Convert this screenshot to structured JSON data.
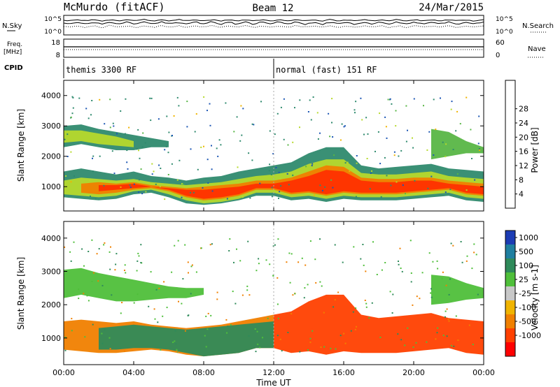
{
  "header": {
    "station": "McMurdo (fitACF)",
    "beam": "Beam 12",
    "date": "24/Mar/2015"
  },
  "top_panels": {
    "nsky_label": "N.Sky",
    "nsearch_label": "N.Search",
    "nsky_ticks": [
      "10^5",
      "10^0"
    ],
    "nsearch_ticks": [
      "10^5",
      "10^0"
    ],
    "freq_label_line1": "Freq.",
    "freq_label_line2": "[MHz]",
    "freq_ticks": [
      "18",
      "8"
    ],
    "nave_label": "Nave",
    "nave_ticks": [
      "60",
      "0"
    ],
    "cpid_label": "CPID",
    "cpid_segments": [
      {
        "label": "themis 3300 RF",
        "start_hour": 0,
        "end_hour": 12
      },
      {
        "label": "normal (fast) 151 RF",
        "start_hour": 12,
        "end_hour": 24
      }
    ]
  },
  "power_colorbar": {
    "label": "Power [dB]",
    "ticks": [
      "4",
      "8",
      "12",
      "16",
      "20",
      "24",
      "28"
    ],
    "colors": [
      "#0000ff",
      "#1c56b4",
      "#2f8a6e",
      "#58b646",
      "#b6d92c",
      "#f0b400",
      "#f08000",
      "#ff3000",
      "#ff0000"
    ]
  },
  "velocity_colorbar": {
    "label": "Velocity [m s-1]",
    "ticks": [
      "1000",
      "500",
      "100",
      "25",
      "-25",
      "-100",
      "-500",
      "-1000"
    ],
    "colors": [
      "#1c3cb4",
      "#1f7fa0",
      "#2f8a5a",
      "#4fbf3a",
      "#c8c8c8",
      "#f0b400",
      "#f08000",
      "#ff4000",
      "#ff0000"
    ]
  },
  "chart_data": {
    "type": "heatmap",
    "xlabel": "Time UT",
    "ylabel": "Slant Range [km]",
    "xlim": [
      0,
      24
    ],
    "ylim": [
      200,
      4500
    ],
    "x_ticks": [
      "00:00",
      "04:00",
      "08:00",
      "12:00",
      "16:00",
      "20:00",
      "00:00"
    ],
    "y_ticks": [
      "1000",
      "2000",
      "3000",
      "4000"
    ],
    "power_panel": {
      "bands": [
        {
          "t": [
            0,
            1,
            2,
            3,
            4,
            5,
            6,
            7,
            8,
            9,
            10,
            11,
            12,
            13,
            14,
            15,
            16,
            17,
            18,
            19,
            20,
            21,
            22,
            23,
            24
          ],
          "low": [
            650,
            600,
            550,
            600,
            750,
            800,
            650,
            450,
            400,
            450,
            550,
            700,
            700,
            550,
            600,
            500,
            600,
            550,
            550,
            550,
            600,
            650,
            700,
            550,
            500
          ],
          "high": [
            1500,
            1600,
            1500,
            1400,
            1500,
            1350,
            1300,
            1200,
            1300,
            1350,
            1500,
            1600,
            1700,
            1800,
            2100,
            2300,
            2300,
            1700,
            1600,
            1650,
            1700,
            1750,
            1600,
            1550,
            1500
          ],
          "level": 8
        },
        {
          "t": [
            0,
            1,
            2,
            3,
            4,
            5,
            6,
            7,
            8,
            9,
            10,
            11,
            12,
            13,
            14,
            15,
            16,
            17,
            18,
            19,
            20,
            21,
            22,
            23,
            24
          ],
          "low": [
            750,
            700,
            650,
            700,
            850,
            900,
            750,
            550,
            450,
            500,
            600,
            800,
            800,
            650,
            700,
            600,
            700,
            650,
            650,
            650,
            700,
            750,
            800,
            650,
            600
          ],
          "high": [
            1200,
            1300,
            1250,
            1200,
            1250,
            1150,
            1100,
            1050,
            1100,
            1150,
            1250,
            1350,
            1400,
            1500,
            1750,
            1900,
            1900,
            1450,
            1400,
            1400,
            1450,
            1500,
            1350,
            1300,
            1250
          ],
          "level": 16
        },
        {
          "t": [
            1,
            2,
            3,
            4,
            5,
            6,
            7,
            8,
            9,
            10,
            11,
            12,
            13,
            14,
            15,
            16,
            17,
            18,
            19,
            20,
            21,
            22,
            23,
            24
          ],
          "low": [
            800,
            750,
            800,
            900,
            950,
            850,
            650,
            550,
            600,
            700,
            900,
            900,
            750,
            800,
            700,
            800,
            750,
            750,
            750,
            800,
            850,
            900,
            750,
            700
          ],
          "high": [
            1100,
            1150,
            1100,
            1150,
            1050,
            1000,
            950,
            1000,
            1050,
            1100,
            1200,
            1200,
            1300,
            1500,
            1700,
            1650,
            1300,
            1250,
            1250,
            1300,
            1300,
            1200,
            1150,
            1100
          ],
          "level": 24
        },
        {
          "t": [
            2,
            3,
            4,
            5,
            6,
            7,
            8,
            9,
            10,
            11,
            12,
            13,
            14,
            15,
            16,
            17,
            18,
            19,
            20,
            21,
            22,
            23,
            24
          ],
          "low": [
            850,
            900,
            950,
            1000,
            900,
            700,
            600,
            650,
            750,
            950,
            950,
            800,
            850,
            750,
            850,
            800,
            800,
            800,
            850,
            900,
            950,
            800,
            750
          ],
          "high": [
            1050,
            1050,
            1100,
            1000,
            950,
            900,
            900,
            950,
            1000,
            1100,
            1100,
            1200,
            1350,
            1550,
            1500,
            1200,
            1150,
            1150,
            1200,
            1200,
            1100,
            1050,
            1000
          ],
          "level": 28
        },
        {
          "t": [
            0,
            1,
            2,
            3,
            4,
            5,
            6
          ],
          "low": [
            2300,
            2400,
            2300,
            2200,
            2200,
            2300,
            2300
          ],
          "high": [
            3000,
            3050,
            2900,
            2800,
            2700,
            2600,
            2500
          ],
          "level": 8
        },
        {
          "t": [
            0,
            1,
            2,
            3,
            4
          ],
          "low": [
            2450,
            2500,
            2400,
            2350,
            2300
          ],
          "high": [
            2850,
            2850,
            2750,
            2650,
            2500
          ],
          "level": 16
        },
        {
          "t": [
            21,
            22,
            23,
            24
          ],
          "low": [
            1900,
            2000,
            2100,
            2100
          ],
          "high": [
            2900,
            2800,
            2500,
            2300
          ],
          "level": 12
        }
      ]
    },
    "velocity_panel": {
      "bands": [
        {
          "t": [
            0,
            1,
            2,
            3,
            4,
            5,
            6,
            7,
            8,
            9,
            10,
            11,
            12
          ],
          "low": [
            650,
            600,
            550,
            550,
            600,
            650,
            600,
            500,
            450,
            500,
            550,
            700,
            700
          ],
          "high": [
            1500,
            1550,
            1500,
            1450,
            1500,
            1400,
            1350,
            1300,
            1350,
            1400,
            1500,
            1600,
            1700
          ],
          "level": -100
        },
        {
          "t": [
            2,
            3,
            4,
            5,
            6,
            7,
            8,
            9,
            10,
            11,
            12
          ],
          "low": [
            650,
            650,
            700,
            700,
            650,
            550,
            450,
            500,
            550,
            700,
            700
          ],
          "high": [
            1300,
            1350,
            1400,
            1350,
            1300,
            1250,
            1300,
            1350,
            1400,
            1450,
            1500
          ],
          "level": 100
        },
        {
          "t": [
            12,
            13,
            14,
            15,
            16,
            17,
            18,
            19,
            20,
            21,
            22,
            23,
            24
          ],
          "low": [
            700,
            550,
            600,
            500,
            600,
            550,
            550,
            550,
            600,
            650,
            700,
            550,
            500
          ],
          "high": [
            1700,
            1800,
            2100,
            2300,
            2300,
            1700,
            1600,
            1650,
            1700,
            1750,
            1600,
            1550,
            1500
          ],
          "level": -500
        },
        {
          "t": [
            0,
            1,
            2,
            3,
            4,
            5,
            6,
            7,
            8
          ],
          "low": [
            2200,
            2300,
            2200,
            2100,
            2100,
            2150,
            2200,
            2200,
            2300
          ],
          "high": [
            3050,
            3100,
            2950,
            2850,
            2750,
            2650,
            2550,
            2500,
            2500
          ],
          "level": 25
        },
        {
          "t": [
            21,
            22,
            23,
            24
          ],
          "low": [
            2000,
            2050,
            2150,
            2200
          ],
          "high": [
            2900,
            2850,
            2650,
            2500
          ],
          "level": 25
        }
      ]
    }
  }
}
